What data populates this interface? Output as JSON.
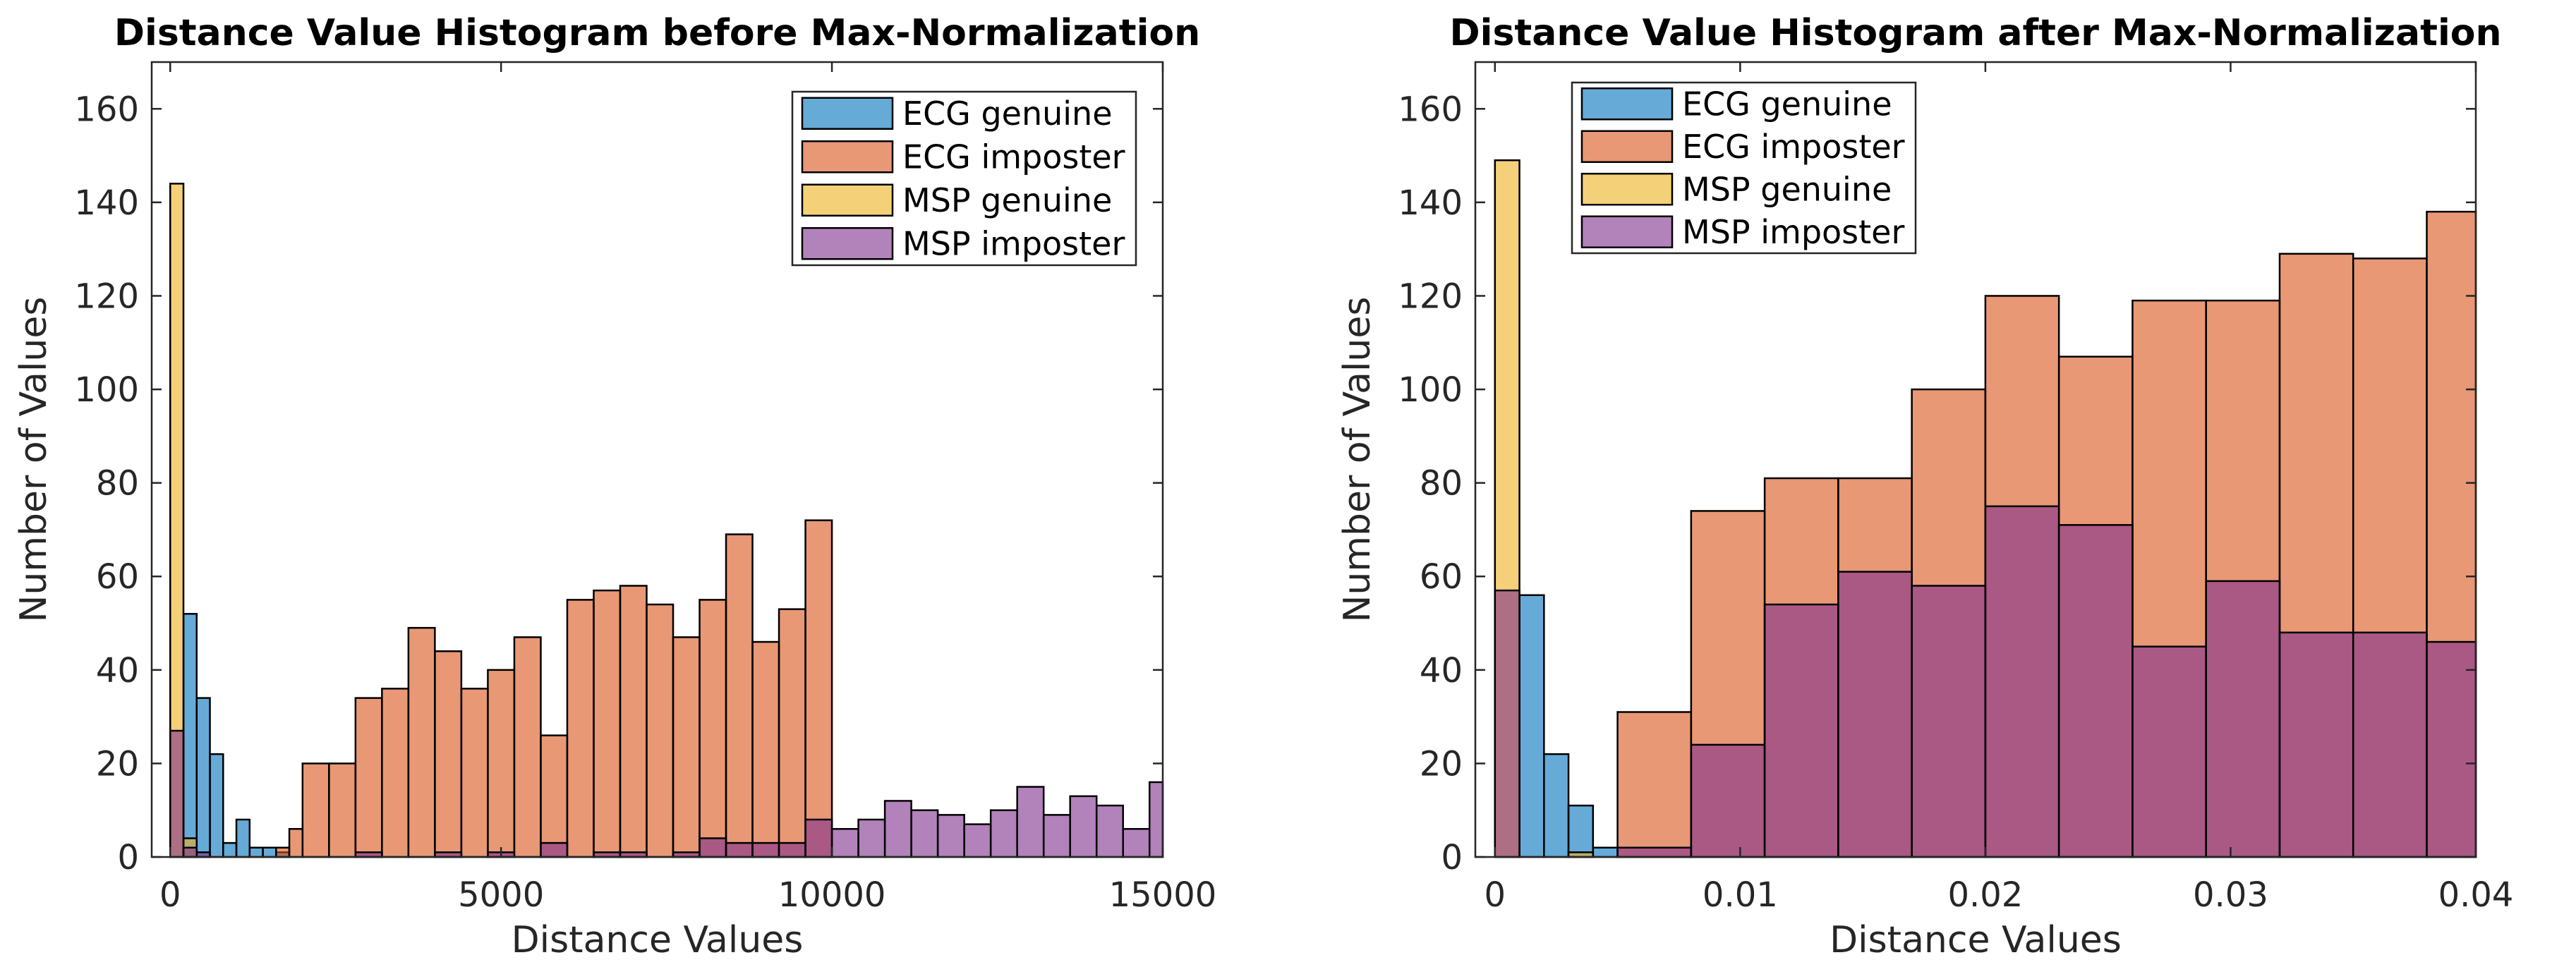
{
  "chart_data": [
    {
      "type": "bar",
      "title": "Distance Value Histogram before Max-Normalization",
      "xlabel": "Distance Values",
      "ylabel": "Number of Values",
      "xlim": [
        -280,
        15000
      ],
      "ylim": [
        0,
        170
      ],
      "xticks": [
        {
          "v": 0,
          "label": "0"
        },
        {
          "v": 5000,
          "label": "5000"
        },
        {
          "v": 10000,
          "label": "10000"
        },
        {
          "v": 15000,
          "label": "15000"
        }
      ],
      "yticks": [
        {
          "v": 0,
          "label": "0"
        },
        {
          "v": 20,
          "label": "20"
        },
        {
          "v": 40,
          "label": "40"
        },
        {
          "v": 60,
          "label": "60"
        },
        {
          "v": 80,
          "label": "80"
        },
        {
          "v": 100,
          "label": "100"
        },
        {
          "v": 120,
          "label": "120"
        },
        {
          "v": 140,
          "label": "140"
        },
        {
          "v": 160,
          "label": "160"
        }
      ],
      "legend_position": "top-right",
      "series": [
        {
          "name": "ECG genuine",
          "color": "#0072BD",
          "edges": [
            0,
            200,
            400,
            600,
            800,
            1000,
            1200,
            1400,
            1600,
            1800
          ],
          "values": [
            0,
            52,
            34,
            22,
            3,
            8,
            2,
            2,
            1
          ]
        },
        {
          "name": "ECG imposter",
          "color": "#D95319",
          "edges": [
            1600,
            1800,
            2000,
            2400,
            2800,
            3200,
            3600,
            4000,
            4400,
            4800,
            5200,
            5600,
            6000,
            6400,
            6800,
            7200,
            7600,
            8000,
            8400,
            8800,
            9200,
            9600,
            10000
          ],
          "values": [
            2,
            6,
            20,
            20,
            34,
            36,
            49,
            44,
            36,
            40,
            47,
            26,
            55,
            57,
            58,
            54,
            47,
            55,
            69,
            46,
            53,
            72
          ]
        },
        {
          "name": "MSP genuine",
          "color": "#EDB120",
          "edges": [
            0,
            200,
            400,
            600
          ],
          "values": [
            144,
            4,
            0
          ]
        },
        {
          "name": "MSP imposter",
          "color": "#7E2F8E",
          "edges": [
            0,
            200,
            400,
            600,
            800,
            1000,
            1200,
            1400,
            1600,
            1800,
            2000,
            2400,
            2800,
            3200,
            3600,
            4000,
            4400,
            4800,
            5200,
            5600,
            6000,
            6400,
            6800,
            7200,
            7600,
            8000,
            8400,
            8800,
            9200,
            9600,
            10000,
            10400,
            10800,
            11200,
            11600,
            12000,
            12400,
            12800,
            13200,
            13600,
            14000,
            14400,
            14800,
            15000
          ],
          "values": [
            27,
            2,
            1,
            0,
            0,
            0,
            0,
            0,
            0,
            0,
            0,
            0,
            1,
            0,
            0,
            1,
            0,
            1,
            0,
            3,
            0,
            1,
            1,
            0,
            1,
            4,
            3,
            3,
            3,
            8,
            6,
            8,
            12,
            10,
            9,
            7,
            10,
            15,
            9,
            13,
            11,
            6,
            16
          ]
        }
      ]
    },
    {
      "type": "bar",
      "title": "Distance Value Histogram after Max-Normalization",
      "xlabel": "Distance Values",
      "ylabel": "Number of Values",
      "xlim": [
        -0.0008,
        0.04
      ],
      "ylim": [
        0,
        170
      ],
      "xticks": [
        {
          "v": 0,
          "label": "0"
        },
        {
          "v": 0.01,
          "label": "0.01"
        },
        {
          "v": 0.02,
          "label": "0.02"
        },
        {
          "v": 0.03,
          "label": "0.03"
        },
        {
          "v": 0.04,
          "label": "0.04"
        }
      ],
      "yticks": [
        {
          "v": 0,
          "label": "0"
        },
        {
          "v": 20,
          "label": "20"
        },
        {
          "v": 40,
          "label": "40"
        },
        {
          "v": 60,
          "label": "60"
        },
        {
          "v": 80,
          "label": "80"
        },
        {
          "v": 100,
          "label": "100"
        },
        {
          "v": 120,
          "label": "120"
        },
        {
          "v": 140,
          "label": "140"
        },
        {
          "v": 160,
          "label": "160"
        }
      ],
      "legend_position": "top-left",
      "series": [
        {
          "name": "ECG genuine",
          "color": "#0072BD",
          "edges": [
            0,
            0.001,
            0.002,
            0.003,
            0.004,
            0.005
          ],
          "values": [
            0,
            56,
            22,
            11,
            2
          ]
        },
        {
          "name": "ECG imposter",
          "color": "#D95319",
          "edges": [
            0.005,
            0.008,
            0.011,
            0.014,
            0.017,
            0.02,
            0.023,
            0.026,
            0.029,
            0.032,
            0.035,
            0.038,
            0.04
          ],
          "values": [
            31,
            74,
            81,
            81,
            100,
            120,
            107,
            119,
            119,
            129,
            128,
            138
          ]
        },
        {
          "name": "MSP genuine",
          "color": "#EDB120",
          "edges": [
            0,
            0.001,
            0.002,
            0.003,
            0.004
          ],
          "values": [
            149,
            0,
            0,
            1
          ]
        },
        {
          "name": "MSP imposter",
          "color": "#7E2F8E",
          "edges": [
            0,
            0.001,
            0.002,
            0.003,
            0.004,
            0.005,
            0.008,
            0.011,
            0.014,
            0.017,
            0.02,
            0.023,
            0.026,
            0.029,
            0.032,
            0.035,
            0.038,
            0.04
          ],
          "values": [
            57,
            0,
            0,
            0,
            0,
            2,
            24,
            54,
            61,
            58,
            75,
            71,
            45,
            59,
            48,
            48,
            46
          ]
        }
      ]
    }
  ]
}
